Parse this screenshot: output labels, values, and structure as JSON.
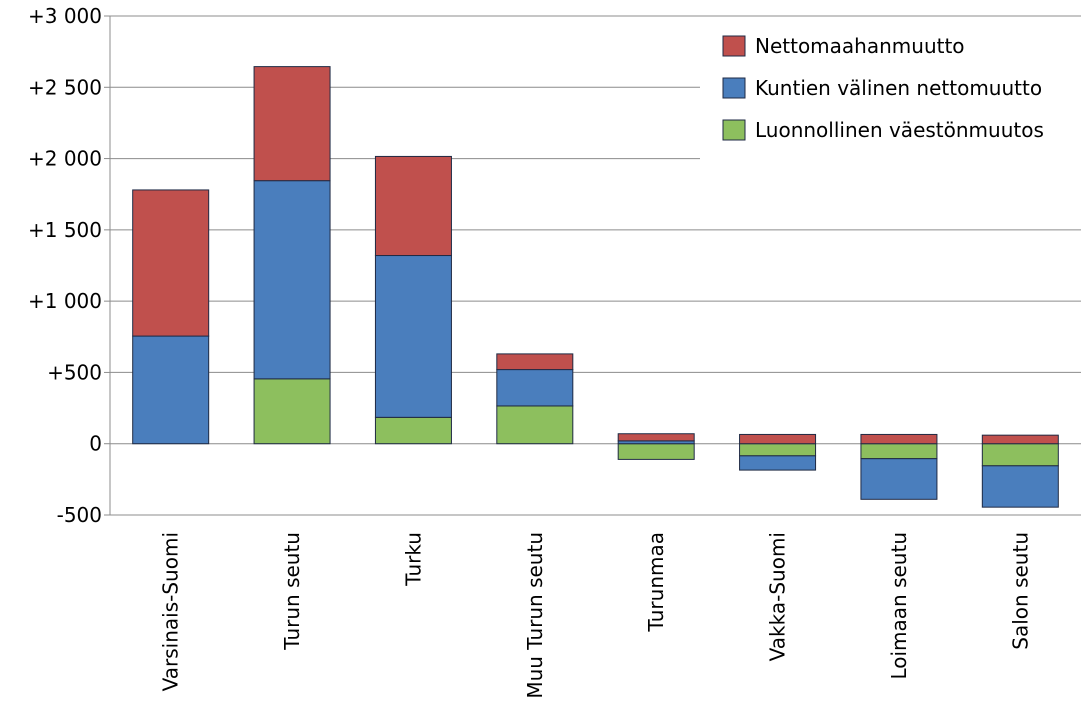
{
  "chart_data": {
    "type": "bar",
    "stacked": true,
    "categories": [
      "Varsinais-Suomi",
      "Turun seutu",
      "Turku",
      "Muu Turun seutu",
      "Turunmaa",
      "Vakka-Suomi",
      "Loimaan seutu",
      "Salon seutu"
    ],
    "series": [
      {
        "name": "Luonnollinen väestönmuutos",
        "color": "#8dbf5e",
        "values": [
          0,
          455,
          185,
          265,
          -110,
          -85,
          -105,
          -155
        ]
      },
      {
        "name": "Kuntien välinen nettomuutto",
        "color": "#4a7ebd",
        "values": [
          755,
          1390,
          1135,
          255,
          20,
          -100,
          -285,
          -290
        ]
      },
      {
        "name": "Nettomaahanmuutto",
        "color": "#c0504d",
        "values": [
          1025,
          800,
          695,
          110,
          50,
          65,
          65,
          60
        ]
      }
    ],
    "yticks": [
      "+3 000",
      "+2 500",
      "+2 000",
      "+1 500",
      "+1 000",
      "+500",
      "0",
      "-500"
    ],
    "ytick_values": [
      3000,
      2500,
      2000,
      1500,
      1000,
      500,
      0,
      -500
    ],
    "ylim": [
      -500,
      3000
    ],
    "grid": true,
    "legend_position": "top-right",
    "legend_order": [
      "Nettomaahanmuutto",
      "Kuntien välinen nettomuutto",
      "Luonnollinen väestönmuutos"
    ],
    "title": "",
    "xlabel": "",
    "ylabel": ""
  }
}
